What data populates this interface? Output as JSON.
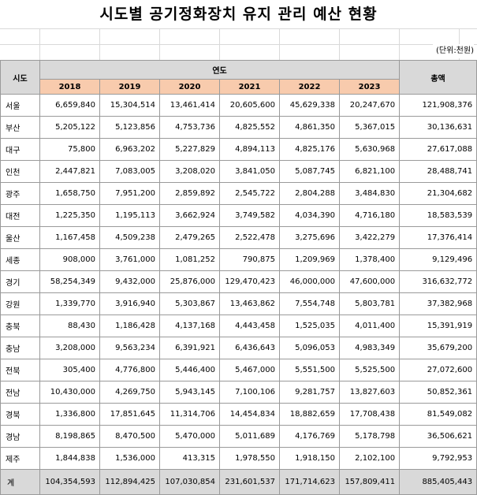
{
  "title": "시도별 공기정화장치 유지 관리 예산 현황",
  "unit_note": "(단위:천원)",
  "headers": {
    "region": "시도",
    "period_group": "연도",
    "years": [
      "2018",
      "2019",
      "2020",
      "2021",
      "2022",
      "2023"
    ],
    "total": "총액"
  },
  "rows": [
    {
      "region": "서울",
      "values": [
        "6,659,840",
        "15,304,514",
        "13,461,414",
        "20,605,600",
        "45,629,338",
        "20,247,670"
      ],
      "total": "121,908,376"
    },
    {
      "region": "부산",
      "values": [
        "5,205,122",
        "5,123,856",
        "4,753,736",
        "4,825,552",
        "4,861,350",
        "5,367,015"
      ],
      "total": "30,136,631"
    },
    {
      "region": "대구",
      "values": [
        "75,800",
        "6,963,202",
        "5,227,829",
        "4,894,113",
        "4,825,176",
        "5,630,968"
      ],
      "total": "27,617,088"
    },
    {
      "region": "인천",
      "values": [
        "2,447,821",
        "7,083,005",
        "3,208,020",
        "3,841,050",
        "5,087,745",
        "6,821,100"
      ],
      "total": "28,488,741"
    },
    {
      "region": "광주",
      "values": [
        "1,658,750",
        "7,951,200",
        "2,859,892",
        "2,545,722",
        "2,804,288",
        "3,484,830"
      ],
      "total": "21,304,682"
    },
    {
      "region": "대전",
      "values": [
        "1,225,350",
        "1,195,113",
        "3,662,924",
        "3,749,582",
        "4,034,390",
        "4,716,180"
      ],
      "total": "18,583,539"
    },
    {
      "region": "울산",
      "values": [
        "1,167,458",
        "4,509,238",
        "2,479,265",
        "2,522,478",
        "3,275,696",
        "3,422,279"
      ],
      "total": "17,376,414"
    },
    {
      "region": "세종",
      "values": [
        "908,000",
        "3,761,000",
        "1,081,252",
        "790,875",
        "1,209,969",
        "1,378,400"
      ],
      "total": "9,129,496"
    },
    {
      "region": "경기",
      "values": [
        "58,254,349",
        "9,432,000",
        "25,876,000",
        "129,470,423",
        "46,000,000",
        "47,600,000"
      ],
      "total": "316,632,772"
    },
    {
      "region": "강원",
      "values": [
        "1,339,770",
        "3,916,940",
        "5,303,867",
        "13,463,862",
        "7,554,748",
        "5,803,781"
      ],
      "total": "37,382,968"
    },
    {
      "region": "충북",
      "values": [
        "88,430",
        "1,186,428",
        "4,137,168",
        "4,443,458",
        "1,525,035",
        "4,011,400"
      ],
      "total": "15,391,919"
    },
    {
      "region": "충남",
      "values": [
        "3,208,000",
        "9,563,234",
        "6,391,921",
        "6,436,643",
        "5,096,053",
        "4,983,349"
      ],
      "total": "35,679,200"
    },
    {
      "region": "전북",
      "values": [
        "305,400",
        "4,776,800",
        "5,446,400",
        "5,467,000",
        "5,551,500",
        "5,525,500"
      ],
      "total": "27,072,600"
    },
    {
      "region": "전남",
      "values": [
        "10,430,000",
        "4,269,750",
        "5,943,145",
        "7,100,106",
        "9,281,757",
        "13,827,603"
      ],
      "total": "50,852,361"
    },
    {
      "region": "경북",
      "values": [
        "1,336,800",
        "17,851,645",
        "11,314,706",
        "14,454,834",
        "18,882,659",
        "17,708,438"
      ],
      "total": "81,549,082"
    },
    {
      "region": "경남",
      "values": [
        "8,198,865",
        "8,470,500",
        "5,470,000",
        "5,011,689",
        "4,176,769",
        "5,178,798"
      ],
      "total": "36,506,621"
    },
    {
      "region": "제주",
      "values": [
        "1,844,838",
        "1,536,000",
        "413,315",
        "1,978,550",
        "1,918,150",
        "2,102,100"
      ],
      "total": "9,792,953"
    }
  ],
  "sum_row": {
    "label": "계",
    "values": [
      "104,354,593",
      "112,894,425",
      "107,030,854",
      "231,601,537",
      "171,714,623",
      "157,809,411"
    ],
    "total": "885,405,443"
  }
}
